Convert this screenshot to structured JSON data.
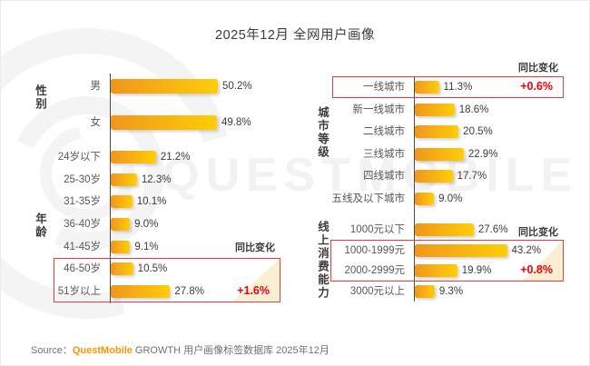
{
  "title": "2025年12月 全网用户画像",
  "watermark": {
    "text": "QUESTMOBILE"
  },
  "source": {
    "prefix": "Source：",
    "brand": "QuestMobile",
    "suffix": " GROWTH 用户画像标签数据库 2025年12月"
  },
  "colors": {
    "bar_gradient_start": "#F0961E",
    "bar_gradient_end": "#FFCE06",
    "highlight_border_red": "#E2403E",
    "delta_text_red": "#E60012",
    "brand_orange": "#F39800",
    "highlight_triangle_cream": "#FAEFD3"
  },
  "chart_data": [
    {
      "type": "bar",
      "section": "性别",
      "unit": "%",
      "categories": [
        "男",
        "女"
      ],
      "values": [
        50.2,
        49.8
      ]
    },
    {
      "type": "bar",
      "section": "年龄",
      "unit": "%",
      "categories": [
        "24岁以下",
        "25-30岁",
        "31-35岁",
        "36-40岁",
        "41-45岁",
        "46-50岁",
        "51岁以上"
      ],
      "values": [
        21.2,
        12.3,
        10.1,
        9.0,
        9.1,
        10.5,
        27.8
      ],
      "highlight": {
        "rows": [
          5,
          6
        ],
        "yoy_label": "同比变化",
        "delta": "+1.6%"
      }
    },
    {
      "type": "bar",
      "section": "城市等级",
      "unit": "%",
      "categories": [
        "一线城市",
        "新一线城市",
        "二线城市",
        "三线城市",
        "四线城市",
        "五线及以下城市"
      ],
      "values": [
        11.3,
        18.6,
        20.5,
        22.9,
        17.7,
        9.0
      ],
      "highlight": {
        "rows": [
          0,
          0
        ],
        "yoy_label": "同比变化",
        "delta": "+0.6%"
      }
    },
    {
      "type": "bar",
      "section": "线上消费能力",
      "unit": "%",
      "categories": [
        "1000元以下",
        "1000-1999元",
        "2000-2999元",
        "3000元以上"
      ],
      "values": [
        27.6,
        43.2,
        19.9,
        9.3
      ],
      "highlight": {
        "rows": [
          1,
          2
        ],
        "yoy_label": "同比变化",
        "delta": "+0.8%"
      }
    }
  ]
}
